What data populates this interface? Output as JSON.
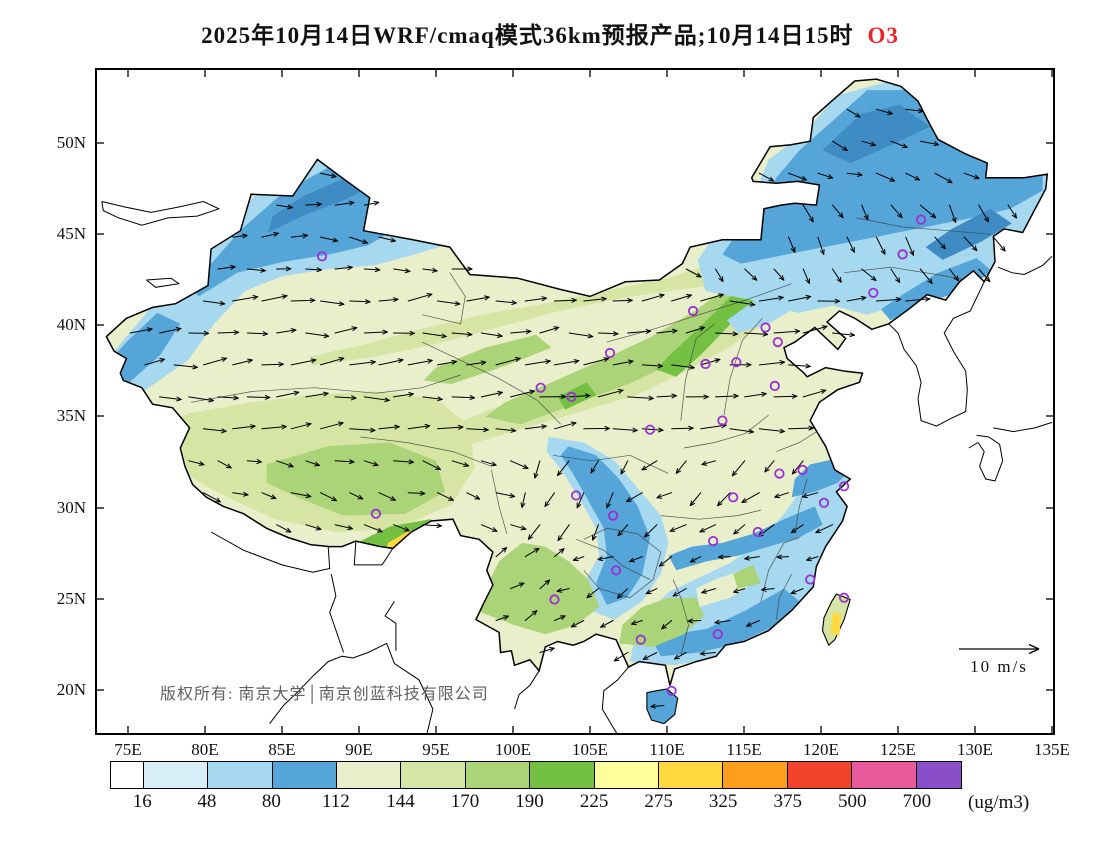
{
  "title": {
    "prefix": "2025年10月14日WRF/cmaq模式36km预报产品;10月14日15时",
    "species": "O3",
    "species_color": "#e8262a"
  },
  "product": {
    "model": "WRF/cmaq",
    "resolution": "36km",
    "forecast_date": "2025年10月14日",
    "valid_time": "10月14日15时",
    "variable": "O3"
  },
  "axes": {
    "lat_labels": [
      "50N",
      "45N",
      "40N",
      "35N",
      "30N",
      "25N",
      "20N"
    ],
    "lon_labels": [
      "75E",
      "80E",
      "85E",
      "90E",
      "95E",
      "100E",
      "105E",
      "110E",
      "115E",
      "120E",
      "125E",
      "130E",
      "135E"
    ]
  },
  "map": {
    "copyright": "版权所有: 南京大学│南京创蓝科技有限公司",
    "wind_scale_label": "10 m/s",
    "station_marker_color": "#9a2fd2",
    "stations": [
      [
        87.6,
        43.8
      ],
      [
        126.5,
        45.8
      ],
      [
        125.3,
        43.9
      ],
      [
        123.4,
        41.8
      ],
      [
        116.4,
        39.9
      ],
      [
        117.2,
        39.1
      ],
      [
        114.5,
        38.0
      ],
      [
        111.7,
        40.8
      ],
      [
        112.5,
        37.9
      ],
      [
        117.0,
        36.7
      ],
      [
        113.6,
        34.8
      ],
      [
        108.9,
        34.3
      ],
      [
        106.3,
        38.5
      ],
      [
        103.8,
        36.1
      ],
      [
        101.8,
        36.6
      ],
      [
        91.1,
        29.7
      ],
      [
        104.1,
        30.7
      ],
      [
        106.5,
        29.6
      ],
      [
        114.3,
        30.6
      ],
      [
        117.3,
        31.9
      ],
      [
        118.8,
        32.1
      ],
      [
        121.5,
        31.2
      ],
      [
        120.2,
        30.3
      ],
      [
        115.9,
        28.7
      ],
      [
        113.0,
        28.2
      ],
      [
        106.7,
        26.6
      ],
      [
        102.7,
        25.0
      ],
      [
        119.3,
        26.1
      ],
      [
        121.5,
        25.1
      ],
      [
        113.3,
        23.1
      ],
      [
        108.3,
        22.8
      ],
      [
        110.3,
        20.0
      ]
    ]
  },
  "colorbar": {
    "labels": [
      "16",
      "48",
      "80",
      "112",
      "144",
      "170",
      "190",
      "225",
      "275",
      "325",
      "375",
      "500",
      "700"
    ],
    "values": [
      16,
      48,
      80,
      112,
      144,
      170,
      190,
      225,
      275,
      325,
      375,
      500,
      700
    ],
    "unit": "(ug/m3)",
    "colors": [
      "#ffffff",
      "#d8eef9",
      "#a6d8f0",
      "#55a5d8",
      "#e9eecb",
      "#d6e5a3",
      "#abd377",
      "#74c043",
      "#ffff9e",
      "#ffd93f",
      "#ff9e1c",
      "#f2432d",
      "#e85a9c",
      "#8a4fc8"
    ]
  }
}
